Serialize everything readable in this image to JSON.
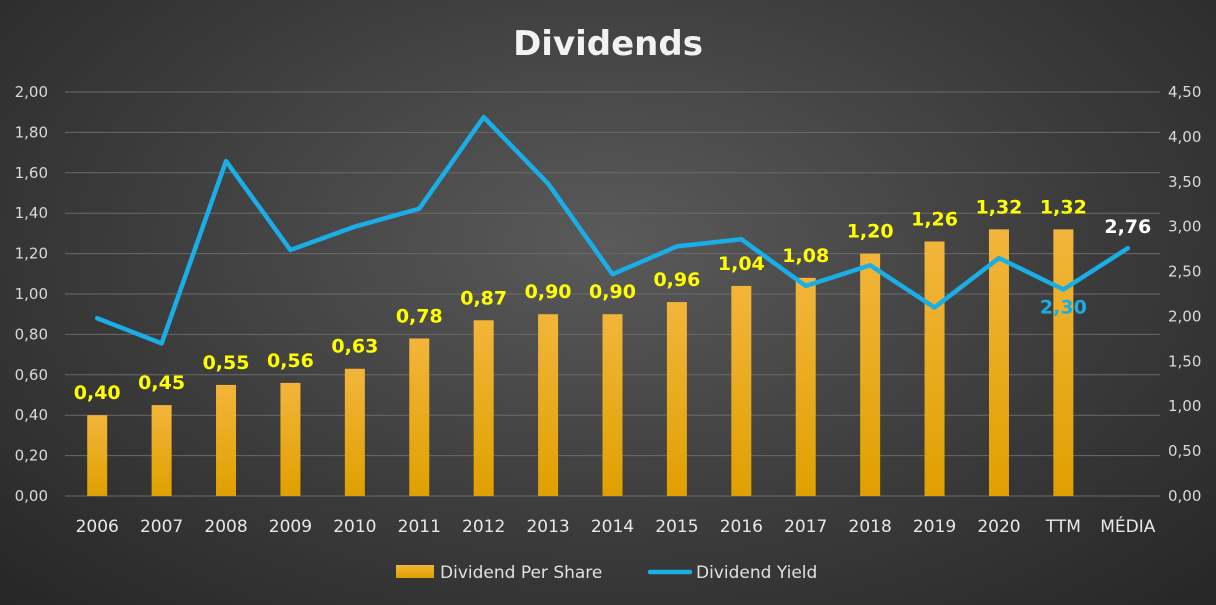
{
  "chart_data": {
    "type": "bar+line",
    "title": "Dividends",
    "categories": [
      "2006",
      "2007",
      "2008",
      "2009",
      "2010",
      "2011",
      "2012",
      "2013",
      "2014",
      "2015",
      "2016",
      "2017",
      "2018",
      "2019",
      "2020",
      "TTM",
      "MÉDIA"
    ],
    "series": [
      {
        "name": "Dividend Per Share",
        "kind": "bar",
        "axis": "left",
        "color": "#f0a500",
        "values": [
          0.4,
          0.45,
          0.55,
          0.56,
          0.63,
          0.78,
          0.87,
          0.9,
          0.9,
          0.96,
          1.04,
          1.08,
          1.2,
          1.26,
          1.32,
          1.32,
          null
        ],
        "labels": [
          "0,40",
          "0,45",
          "0,55",
          "0,56",
          "0,63",
          "0,78",
          "0,87",
          "0,90",
          "0,90",
          "0,96",
          "1,04",
          "1,08",
          "1,20",
          "1,26",
          "1,32",
          "1,32",
          ""
        ]
      },
      {
        "name": "Dividend Yield",
        "kind": "line",
        "axis": "right",
        "color": "#1aaee8",
        "values": [
          1.98,
          1.7,
          3.73,
          2.74,
          3.0,
          3.2,
          4.22,
          3.48,
          2.47,
          2.78,
          2.86,
          2.34,
          2.57,
          2.1,
          2.65,
          2.3,
          2.76
        ],
        "point_labels": [
          {
            "index": 15,
            "text": "2,30",
            "color": "#1aaee8"
          },
          {
            "index": 16,
            "text": "2,76",
            "color": "#ffffff"
          }
        ]
      }
    ],
    "y_left": {
      "min": 0,
      "max": 2.0,
      "ticks": [
        "0,00",
        "0,20",
        "0,40",
        "0,60",
        "0,80",
        "1,00",
        "1,20",
        "1,40",
        "1,60",
        "1,80",
        "2,00"
      ]
    },
    "y_right": {
      "min": 0,
      "max": 4.5,
      "ticks": [
        "0,00",
        "0,50",
        "1,00",
        "1,50",
        "2,00",
        "2,50",
        "3,00",
        "3,50",
        "4,00",
        "4,50"
      ]
    },
    "grid": true,
    "legend_position": "bottom-center"
  }
}
